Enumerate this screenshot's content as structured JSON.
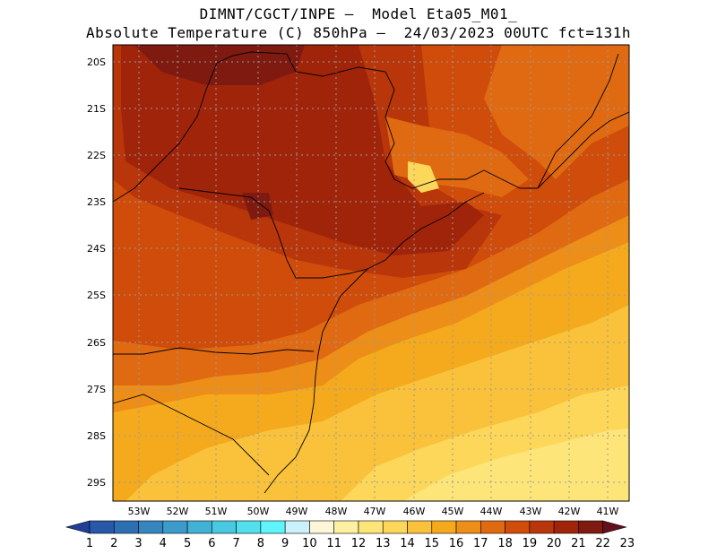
{
  "title": {
    "line1": "DIMNT/CGCT/INPE –  Model Eta05_M01_",
    "line2": "Absolute Temperature (C) 850hPa –  24/03/2023 00UTC fct=131h"
  },
  "map": {
    "lat_labels": [
      "20S",
      "21S",
      "22S",
      "23S",
      "24S",
      "25S",
      "26S",
      "27S",
      "28S",
      "29S"
    ],
    "lon_labels": [
      "53W",
      "52W",
      "51W",
      "50W",
      "49W",
      "48W",
      "47W",
      "46W",
      "45W",
      "44W",
      "43W",
      "42W",
      "41W"
    ],
    "lat_range": [
      -29.4,
      -19.8
    ],
    "lon_range": [
      -53.8,
      -40.6
    ]
  },
  "colorbar": {
    "labels": [
      "1",
      "2",
      "3",
      "4",
      "5",
      "6",
      "7",
      "8",
      "9",
      "10",
      "11",
      "12",
      "13",
      "14",
      "15",
      "16",
      "17",
      "18",
      "19",
      "20",
      "21",
      "22",
      "23"
    ],
    "colors": [
      "#1f3f98",
      "#2759a8",
      "#2e6fb3",
      "#3585bf",
      "#3c9bca",
      "#42b1d6",
      "#49c8e1",
      "#52dfee",
      "#5ff5fb",
      "#cbf1fb",
      "#fdf6d8",
      "#fdf0a0",
      "#fde57a",
      "#fcd75a",
      "#f9c23a",
      "#f4aa1c",
      "#ec8e18",
      "#e06a12",
      "#cf4c0a",
      "#b8360a",
      "#a0240a",
      "#7e1a0f",
      "#62101a"
    ]
  },
  "legend_scale": {
    "temp_colors": {
      "t14": "#fde57a",
      "t15": "#fcd75a",
      "t16": "#f9c23a",
      "t17": "#f4aa1c",
      "t18": "#ec8e18",
      "t19": "#e06a12",
      "t20": "#cf4c0a",
      "t21": "#b8360a",
      "t22": "#a0240a",
      "t23": "#7e1a0f"
    }
  }
}
